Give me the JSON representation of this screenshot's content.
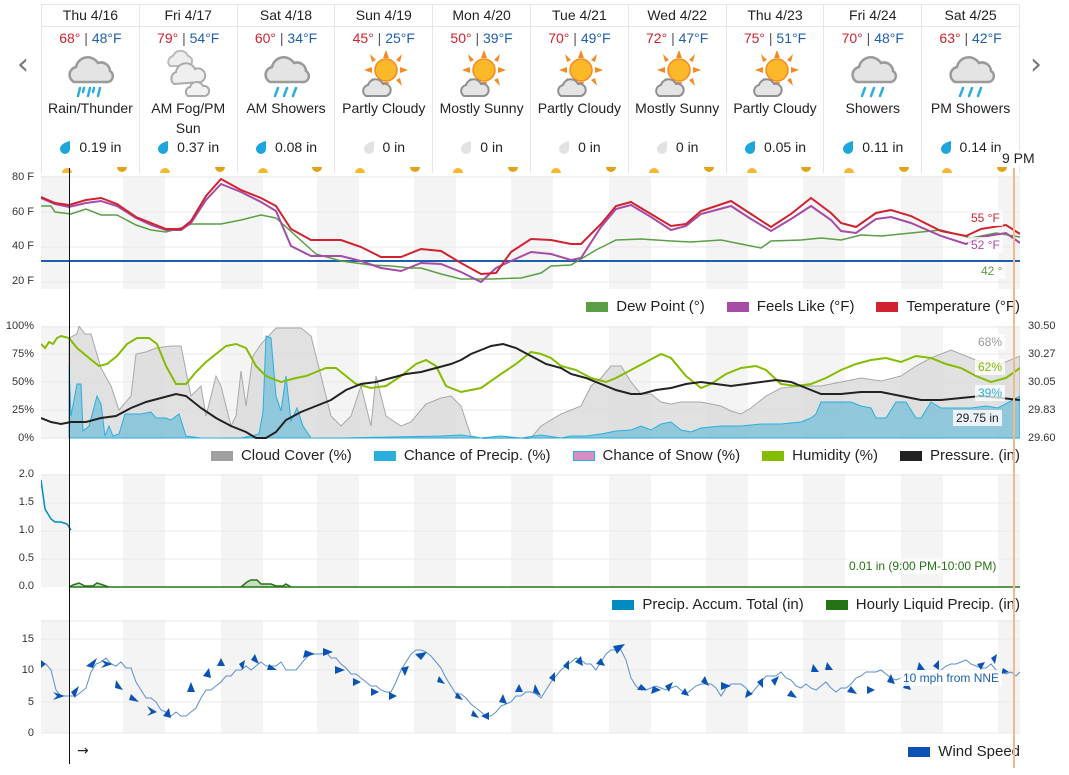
{
  "nav": {
    "prev_icon": "‹",
    "next_icon": "›"
  },
  "now_marker": {
    "label": "9 PM"
  },
  "days": [
    {
      "name": "Thu 4/16",
      "hi": "68°",
      "lo": "48°F",
      "icon": "rain-thunder",
      "condition": "Rain/Thunder",
      "precip": "0.19 in",
      "wet": true
    },
    {
      "name": "Fri 4/17",
      "hi": "79°",
      "lo": "54°F",
      "icon": "fog",
      "condition": "AM Fog/PM Sun",
      "precip": "0.37 in",
      "wet": true
    },
    {
      "name": "Sat 4/18",
      "hi": "60°",
      "lo": "34°F",
      "icon": "showers",
      "condition": "AM Showers",
      "precip": "0.08 in",
      "wet": true
    },
    {
      "name": "Sun 4/19",
      "hi": "45°",
      "lo": "25°F",
      "icon": "partly-cloudy",
      "condition": "Partly Cloudy",
      "precip": "0 in",
      "wet": false
    },
    {
      "name": "Mon 4/20",
      "hi": "50°",
      "lo": "39°F",
      "icon": "partly-cloudy",
      "condition": "Mostly Sunny",
      "precip": "0 in",
      "wet": false
    },
    {
      "name": "Tue 4/21",
      "hi": "70°",
      "lo": "49°F",
      "icon": "partly-cloudy",
      "condition": "Partly Cloudy",
      "precip": "0 in",
      "wet": false
    },
    {
      "name": "Wed 4/22",
      "hi": "72°",
      "lo": "47°F",
      "icon": "partly-cloudy",
      "condition": "Mostly Sunny",
      "precip": "0 in",
      "wet": false
    },
    {
      "name": "Thu 4/23",
      "hi": "75°",
      "lo": "51°F",
      "icon": "partly-cloudy",
      "condition": "Partly Cloudy",
      "precip": "0.05 in",
      "wet": true
    },
    {
      "name": "Fri 4/24",
      "hi": "70°",
      "lo": "48°F",
      "icon": "showers",
      "condition": "Showers",
      "precip": "0.11 in",
      "wet": true
    },
    {
      "name": "Sat 4/25",
      "hi": "63°",
      "lo": "42°F",
      "icon": "showers",
      "condition": "PM Showers",
      "precip": "0.14 in",
      "wet": true
    }
  ],
  "temp_chart": {
    "yticks": [
      "80 F",
      "60 F",
      "40 F",
      "20 F"
    ],
    "legend": [
      "Dew Point (°)",
      "Feels Like (°F)",
      "Temperature (°F)"
    ],
    "callouts": {
      "temp": "55 °F",
      "feels": "52 °F",
      "dew": "42 °"
    }
  },
  "humidity_chart": {
    "yticks_left": [
      "100%",
      "75%",
      "50%",
      "25%",
      "0%"
    ],
    "yticks_right": [
      "30.50",
      "30.27",
      "30.05",
      "29.83",
      "29.60"
    ],
    "legend": [
      "Cloud Cover (%)",
      "Chance of Precip. (%)",
      "Chance of Snow (%)",
      "Humidity (%)",
      "Pressure. (in)"
    ],
    "callouts": {
      "cloud": "68%",
      "humidity": "62%",
      "precip": "39%",
      "pressure": "29.75 in"
    }
  },
  "precip_chart": {
    "yticks": [
      "2.0",
      "1.5",
      "1.0",
      "0.5",
      "0.0"
    ],
    "legend": [
      "Precip. Accum. Total (in)",
      "Hourly Liquid Precip. (in)"
    ],
    "callout": "0.01 in (9:00 PM-10:00 PM)"
  },
  "wind_chart": {
    "yticks": [
      "15",
      "10",
      "5",
      "0"
    ],
    "legend": [
      "Wind Speed"
    ],
    "callout": "10 mph from NNE",
    "arrow_glyph": "→"
  },
  "colors": {
    "temperature": "#d0222f",
    "feels_like": "#a64ca6",
    "dew_point": "#5a9e45",
    "freezing": "#1d5fae",
    "cloud": "#a0a0a0",
    "precip_chance": "#2aaedc",
    "snow": "#d48fc7",
    "humidity": "#84bd00",
    "pressure": "#222222",
    "accum": "#008cc0",
    "hourly": "#267316",
    "wind": "#0a53b4"
  },
  "chart_data": [
    {
      "type": "line",
      "title": "Temperature",
      "x": [
        "Thu 4/16",
        "Fri 4/17",
        "Sat 4/18",
        "Sun 4/19",
        "Mon 4/20",
        "Tue 4/21",
        "Wed 4/22",
        "Thu 4/23",
        "Fri 4/24",
        "Sat 4/25"
      ],
      "series": [
        {
          "name": "Temperature (°F)",
          "values": [
            68,
            79,
            60,
            45,
            50,
            70,
            72,
            75,
            70,
            63
          ]
        },
        {
          "name": "Feels Like (°F)",
          "values": [
            67,
            78,
            58,
            38,
            44,
            68,
            70,
            73,
            68,
            60
          ]
        },
        {
          "name": "Dew Point (°)",
          "values": [
            60,
            54,
            58,
            27,
            22,
            47,
            47,
            50,
            53,
            45
          ]
        }
      ],
      "ylabel": "°F",
      "ylim": [
        16,
        82
      ],
      "freezing_line": 32,
      "annotations": [
        "55 °F",
        "52 °F",
        "42 °"
      ]
    },
    {
      "type": "area",
      "title": "Clouds / Precip / Humidity / Pressure",
      "series": [
        {
          "name": "Cloud Cover (%)",
          "current": 68
        },
        {
          "name": "Chance of Precip. (%)",
          "current": 39
        },
        {
          "name": "Chance of Snow (%)",
          "current": 0
        },
        {
          "name": "Humidity (%)",
          "current": 62
        },
        {
          "name": "Pressure. (in)",
          "current": 29.75
        }
      ],
      "ylim": [
        0,
        100
      ],
      "ylim_right": [
        29.6,
        30.5
      ]
    },
    {
      "type": "line",
      "title": "Precipitation",
      "series": [
        {
          "name": "Precip. Accum. Total (in)",
          "values": [
            1.9,
            1.4,
            1.2,
            1.2,
            1.0
          ]
        },
        {
          "name": "Hourly Liquid Precip. (in)",
          "current": 0.01
        }
      ],
      "ylim": [
        0,
        2.0
      ],
      "annotations": [
        "0.01 in (9:00 PM-10:00 PM)"
      ]
    },
    {
      "type": "line",
      "title": "Wind Speed",
      "series": [
        {
          "name": "Wind Speed",
          "values": [
            11,
            6,
            13,
            1,
            13,
            17,
            7,
            17,
            1,
            15,
            6,
            8,
            6,
            12,
            14,
            10
          ]
        }
      ],
      "ylim": [
        0,
        17
      ],
      "annotations": [
        "10 mph from NNE"
      ]
    }
  ]
}
